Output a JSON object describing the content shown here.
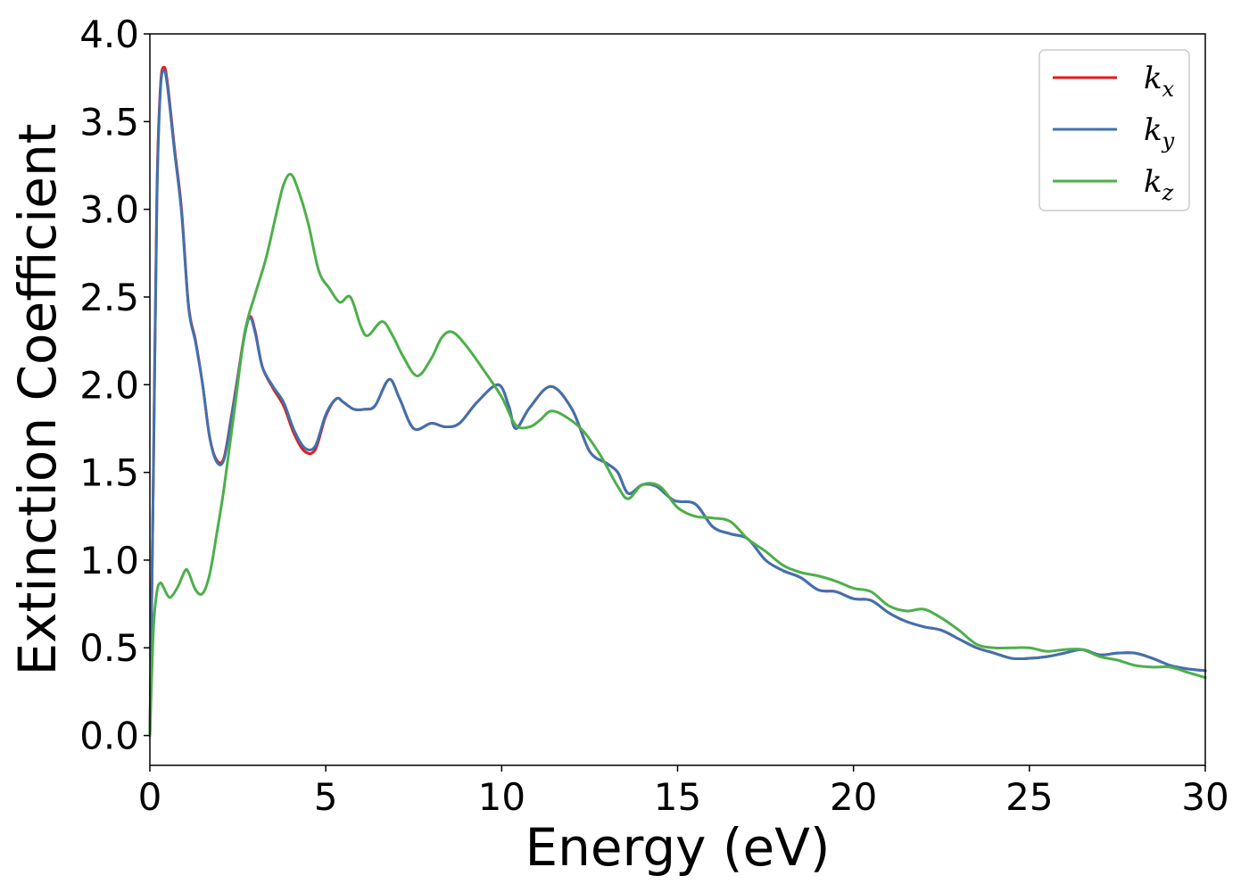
{
  "chart_data": {
    "type": "line",
    "title": "",
    "xlabel": "Energy (eV)",
    "ylabel": "Extinction Coefficient",
    "xlim": [
      0,
      30
    ],
    "ylim": [
      -0.17,
      4.0
    ],
    "xticks": [
      0,
      5,
      10,
      15,
      20,
      25,
      30
    ],
    "yticks": [
      0.0,
      0.5,
      1.0,
      1.5,
      2.0,
      2.5,
      3.0,
      3.5,
      4.0
    ],
    "grid": false,
    "legend_position": "top-right",
    "series": [
      {
        "name": "k",
        "subscript": "x",
        "color": "#e41a1c",
        "x": [
          0,
          0.1,
          0.2,
          0.3,
          0.4,
          0.5,
          0.7,
          0.9,
          1.1,
          1.3,
          1.5,
          1.7,
          1.9,
          2.1,
          2.3,
          2.5,
          2.7,
          2.85,
          3.0,
          3.2,
          3.5,
          3.8,
          4.1,
          4.4,
          4.7,
          5.0,
          5.3,
          5.5,
          5.8,
          6.1,
          6.4,
          6.8,
          7.1,
          7.5,
          8.0,
          8.4,
          8.8,
          9.3,
          9.9,
          10.2,
          10.4,
          10.8,
          11.4,
          12.0,
          12.5,
          13.0,
          13.3,
          13.6,
          14.0,
          14.4,
          14.9,
          15.5,
          16.0,
          16.5,
          17.0,
          17.5,
          18.0,
          18.5,
          19.0,
          19.5,
          20.0,
          20.5,
          21.0,
          21.5,
          22.0,
          22.5,
          23.0,
          23.5,
          24.0,
          24.5,
          25.0,
          25.5,
          26.0,
          26.5,
          27.0,
          27.5,
          28.0,
          28.5,
          29.0,
          29.5,
          30.0
        ],
        "values": [
          0.0,
          1.5,
          3.1,
          3.7,
          3.81,
          3.72,
          3.35,
          3.0,
          2.45,
          2.25,
          2.0,
          1.7,
          1.57,
          1.58,
          1.8,
          2.05,
          2.3,
          2.39,
          2.3,
          2.1,
          1.98,
          1.88,
          1.72,
          1.62,
          1.63,
          1.82,
          1.92,
          1.9,
          1.86,
          1.86,
          1.88,
          2.03,
          1.92,
          1.75,
          1.78,
          1.76,
          1.78,
          1.9,
          2.0,
          1.88,
          1.75,
          1.87,
          1.99,
          1.86,
          1.62,
          1.55,
          1.5,
          1.38,
          1.43,
          1.42,
          1.34,
          1.32,
          1.19,
          1.15,
          1.12,
          1.0,
          0.94,
          0.9,
          0.83,
          0.82,
          0.78,
          0.77,
          0.7,
          0.65,
          0.62,
          0.6,
          0.55,
          0.5,
          0.47,
          0.44,
          0.44,
          0.45,
          0.47,
          0.49,
          0.46,
          0.47,
          0.47,
          0.44,
          0.4,
          0.38,
          0.37
        ]
      },
      {
        "name": "k",
        "subscript": "y",
        "color": "#3f72af",
        "x": [
          0,
          0.1,
          0.2,
          0.3,
          0.4,
          0.5,
          0.7,
          0.9,
          1.1,
          1.3,
          1.5,
          1.7,
          1.9,
          2.1,
          2.3,
          2.5,
          2.7,
          2.85,
          3.0,
          3.2,
          3.5,
          3.8,
          4.1,
          4.4,
          4.7,
          5.0,
          5.3,
          5.5,
          5.8,
          6.1,
          6.4,
          6.8,
          7.1,
          7.5,
          8.0,
          8.4,
          8.8,
          9.3,
          9.9,
          10.2,
          10.4,
          10.8,
          11.4,
          12.0,
          12.5,
          13.0,
          13.3,
          13.6,
          14.0,
          14.4,
          14.9,
          15.5,
          16.0,
          16.5,
          17.0,
          17.5,
          18.0,
          18.5,
          19.0,
          19.5,
          20.0,
          20.5,
          21.0,
          21.5,
          22.0,
          22.5,
          23.0,
          23.5,
          24.0,
          24.5,
          25.0,
          25.5,
          26.0,
          26.5,
          27.0,
          27.5,
          28.0,
          28.5,
          29.0,
          29.5,
          30.0
        ],
        "values": [
          0.0,
          1.5,
          3.05,
          3.68,
          3.79,
          3.7,
          3.33,
          2.98,
          2.44,
          2.24,
          2.0,
          1.7,
          1.56,
          1.57,
          1.79,
          2.04,
          2.29,
          2.38,
          2.29,
          2.1,
          1.99,
          1.9,
          1.74,
          1.64,
          1.65,
          1.83,
          1.92,
          1.9,
          1.86,
          1.86,
          1.88,
          2.03,
          1.92,
          1.75,
          1.78,
          1.76,
          1.78,
          1.9,
          2.0,
          1.88,
          1.75,
          1.87,
          1.99,
          1.86,
          1.62,
          1.55,
          1.5,
          1.38,
          1.43,
          1.42,
          1.34,
          1.32,
          1.19,
          1.15,
          1.12,
          1.0,
          0.94,
          0.9,
          0.83,
          0.82,
          0.78,
          0.77,
          0.7,
          0.65,
          0.62,
          0.6,
          0.55,
          0.5,
          0.47,
          0.44,
          0.44,
          0.45,
          0.47,
          0.49,
          0.46,
          0.47,
          0.47,
          0.44,
          0.4,
          0.38,
          0.37
        ]
      },
      {
        "name": "k",
        "subscript": "z",
        "color": "#4daf4a",
        "x": [
          0,
          0.1,
          0.2,
          0.3,
          0.4,
          0.5,
          0.6,
          0.8,
          1.0,
          1.1,
          1.3,
          1.5,
          1.7,
          1.9,
          2.1,
          2.4,
          2.7,
          3.0,
          3.3,
          3.6,
          3.8,
          4.0,
          4.2,
          4.5,
          4.8,
          5.1,
          5.4,
          5.7,
          6.0,
          6.2,
          6.6,
          6.9,
          7.2,
          7.6,
          8.0,
          8.3,
          8.6,
          9.0,
          9.5,
          10.0,
          10.4,
          10.8,
          11.1,
          11.4,
          11.8,
          12.3,
          12.8,
          13.3,
          13.6,
          14.0,
          14.5,
          15.0,
          15.5,
          16.0,
          16.5,
          17.0,
          17.5,
          18.0,
          18.5,
          19.0,
          19.5,
          20.0,
          20.5,
          21.0,
          21.5,
          22.0,
          22.5,
          23.0,
          23.5,
          24.0,
          24.5,
          25.0,
          25.5,
          26.0,
          26.5,
          27.0,
          27.5,
          28.0,
          28.5,
          29.0,
          29.5,
          30.0
        ],
        "values": [
          0.0,
          0.6,
          0.82,
          0.87,
          0.84,
          0.8,
          0.79,
          0.85,
          0.94,
          0.93,
          0.83,
          0.81,
          0.92,
          1.15,
          1.4,
          1.85,
          2.3,
          2.52,
          2.72,
          2.98,
          3.14,
          3.2,
          3.12,
          2.92,
          2.65,
          2.55,
          2.47,
          2.5,
          2.33,
          2.28,
          2.36,
          2.28,
          2.16,
          2.05,
          2.15,
          2.27,
          2.3,
          2.22,
          2.08,
          1.93,
          1.77,
          1.76,
          1.8,
          1.85,
          1.82,
          1.74,
          1.6,
          1.42,
          1.35,
          1.43,
          1.42,
          1.3,
          1.25,
          1.24,
          1.22,
          1.12,
          1.05,
          0.97,
          0.93,
          0.91,
          0.88,
          0.84,
          0.82,
          0.74,
          0.71,
          0.72,
          0.67,
          0.6,
          0.52,
          0.5,
          0.5,
          0.5,
          0.48,
          0.49,
          0.49,
          0.45,
          0.43,
          0.4,
          0.39,
          0.39,
          0.36,
          0.33
        ]
      }
    ]
  }
}
